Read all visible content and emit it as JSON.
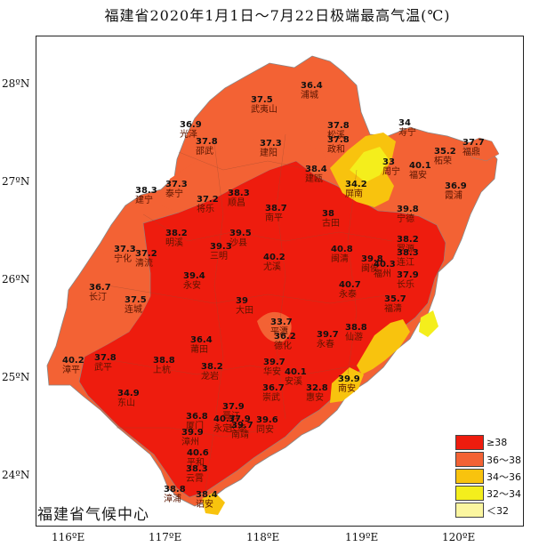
{
  "title": "福建省2020年1月1日～7月22日极端最高气温(℃)",
  "source": "福建省气候中心",
  "axes": {
    "lat_labels": [
      "28ºN",
      "27ºN",
      "26ºN",
      "25ºN",
      "24ºN"
    ],
    "lon_labels": [
      "116ºE",
      "117ºE",
      "118ºE",
      "119ºE",
      "120ºE"
    ]
  },
  "legend": [
    {
      "label": "≥38",
      "color": "#ee1c0e"
    },
    {
      "label": "36～38",
      "color": "#f36234"
    },
    {
      "label": "34～36",
      "color": "#f8c30e"
    },
    {
      "label": "32～34",
      "color": "#f4ee1c"
    },
    {
      "label": "＜32",
      "color": "#fbf6a0"
    }
  ],
  "stations": [
    {
      "name": "浦城",
      "value": "36.4"
    },
    {
      "name": "武夷山",
      "value": "37.5"
    },
    {
      "name": "光泽",
      "value": "36.9"
    },
    {
      "name": "邵武",
      "value": "37.8"
    },
    {
      "name": "建阳",
      "value": "37.3"
    },
    {
      "name": "松溪",
      "value": "37.8"
    },
    {
      "name": "政和",
      "value": "37.8"
    },
    {
      "name": "寿宁",
      "value": "34"
    },
    {
      "name": "柘荣",
      "value": "35.2"
    },
    {
      "name": "福鼎",
      "value": "37.7"
    },
    {
      "name": "周宁",
      "value": "33"
    },
    {
      "name": "福安",
      "value": "40.1"
    },
    {
      "name": "屏南",
      "value": "34.2"
    },
    {
      "name": "霞浦",
      "value": "36.9"
    },
    {
      "name": "建瓯",
      "value": "38.4"
    },
    {
      "name": "泰宁",
      "value": "37.3"
    },
    {
      "name": "将乐",
      "value": "37.2"
    },
    {
      "name": "建宁",
      "value": "38.3"
    },
    {
      "name": "顺昌",
      "value": "38.3"
    },
    {
      "name": "南平",
      "value": "38.7"
    },
    {
      "name": "古田",
      "value": "38"
    },
    {
      "name": "宁德",
      "value": "39.8"
    },
    {
      "name": "明溪",
      "value": "38.2"
    },
    {
      "name": "沙县",
      "value": "39.5"
    },
    {
      "name": "三明",
      "value": "39.3"
    },
    {
      "name": "宁化",
      "value": "37.3"
    },
    {
      "name": "清流",
      "value": "37.2"
    },
    {
      "name": "尤溪",
      "value": "40.2"
    },
    {
      "name": "闽清",
      "value": "40.8"
    },
    {
      "name": "闽侯",
      "value": "39.8"
    },
    {
      "name": "福州",
      "value": "40.3"
    },
    {
      "name": "罗源",
      "value": "38.2"
    },
    {
      "name": "连江",
      "value": "38.3"
    },
    {
      "name": "长乐",
      "value": "37.9"
    },
    {
      "name": "永安",
      "value": "39.4"
    },
    {
      "name": "长汀",
      "value": "36.7"
    },
    {
      "name": "连城",
      "value": "37.5"
    },
    {
      "name": "大田",
      "value": "39"
    },
    {
      "name": "永泰",
      "value": "40.7"
    },
    {
      "name": "福清",
      "value": "35.7"
    },
    {
      "name": "平潭",
      "value": "33.7"
    },
    {
      "name": "德化",
      "value": "36.2"
    },
    {
      "name": "永春",
      "value": "39.7"
    },
    {
      "name": "仙游",
      "value": "38.8"
    },
    {
      "name": "莆田",
      "value": "36.4"
    },
    {
      "name": "漳平",
      "value": "40.2"
    },
    {
      "name": "武平",
      "value": "37.8"
    },
    {
      "name": "上杭",
      "value": "38.8"
    },
    {
      "name": "龙岩",
      "value": "38.2"
    },
    {
      "name": "华安",
      "value": "39.7"
    },
    {
      "name": "安溪",
      "value": "40.1"
    },
    {
      "name": "南安",
      "value": "39.9"
    },
    {
      "name": "惠安",
      "value": "32.8"
    },
    {
      "name": "崇武",
      "value": "36.7"
    },
    {
      "name": "晋江",
      "value": "37.9"
    },
    {
      "name": "同安",
      "value": "39.6"
    },
    {
      "name": "长泰",
      "value": "37.9"
    },
    {
      "name": "厦门",
      "value": "36.8"
    },
    {
      "name": "永定",
      "value": "40.7"
    },
    {
      "name": "南靖",
      "value": "39.7"
    },
    {
      "name": "漳州",
      "value": "39.9"
    },
    {
      "name": "平和",
      "value": "40.6"
    },
    {
      "name": "云霄",
      "value": "38.3"
    },
    {
      "name": "漳浦",
      "value": "38.8"
    },
    {
      "name": "诏安",
      "value": "38.4"
    },
    {
      "name": "东山",
      "value": "34.9"
    }
  ]
}
